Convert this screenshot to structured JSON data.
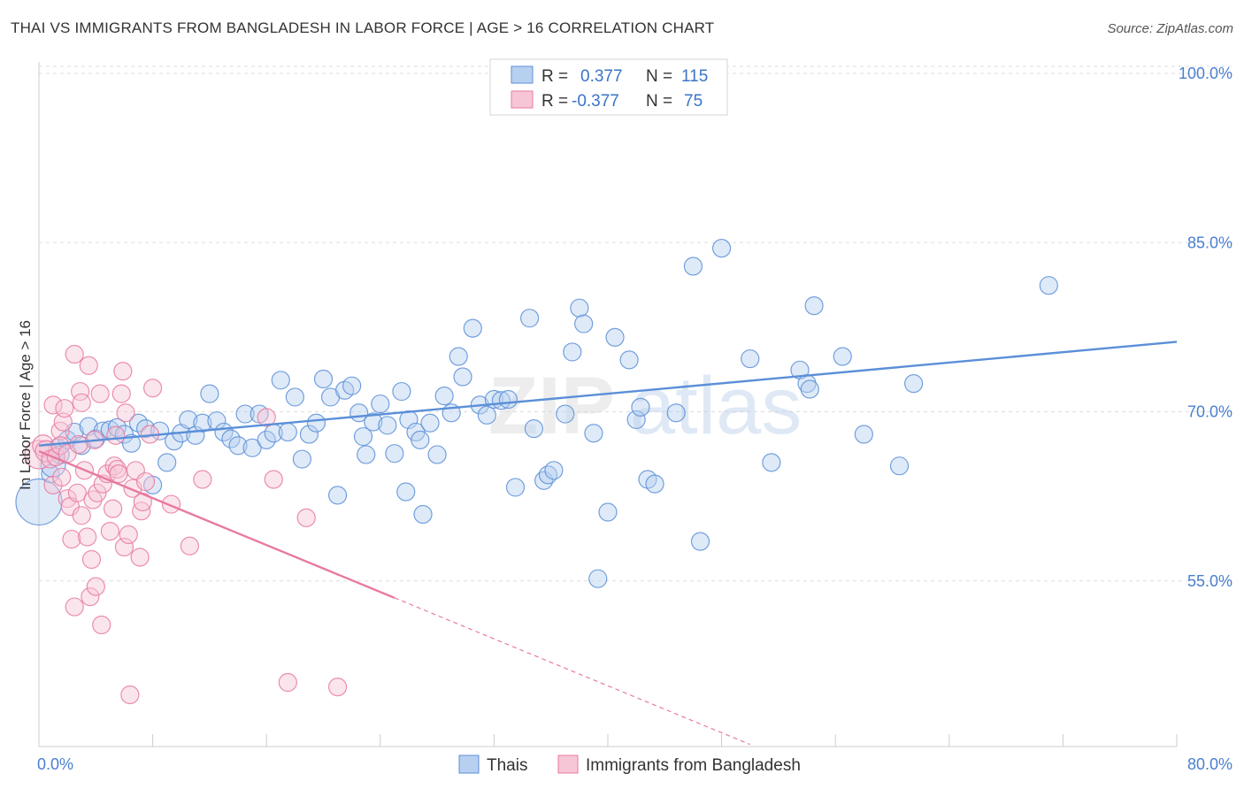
{
  "header": {
    "title": "THAI VS IMMIGRANTS FROM BANGLADESH IN LABOR FORCE | AGE > 16 CORRELATION CHART",
    "source": "Source: ZipAtlas.com"
  },
  "watermark": {
    "zip": "ZIP",
    "atlas": "atlas"
  },
  "legend": {
    "r_label": "R =",
    "n_label": "N =",
    "rows": [
      {
        "r": "0.377",
        "n": "115",
        "color": "#5b8fd8"
      },
      {
        "r": "-0.377",
        "n": "75",
        "color": "#e87aa0"
      }
    ]
  },
  "chart_data": {
    "type": "scatter",
    "title": "THAI VS IMMIGRANTS FROM BANGLADESH IN LABOR FORCE | AGE > 16 CORRELATION CHART",
    "xlabel": "",
    "ylabel": "In Labor Force | Age > 16",
    "xlim": [
      0,
      80
    ],
    "ylim": [
      40,
      102
    ],
    "x_tick_labels": [
      "0.0%",
      "80.0%"
    ],
    "y_ticks": [
      55,
      70,
      85,
      100
    ],
    "y_tick_labels": [
      "55.0%",
      "70.0%",
      "85.0%",
      "100.0%"
    ],
    "grid": true,
    "legend_placement": "top-center",
    "series": [
      {
        "name": "Thais",
        "color": "#5b8fd8",
        "trend": {
          "x": [
            0,
            80
          ],
          "y": [
            67.0,
            76.2
          ],
          "dashed_x": null
        },
        "points": [
          [
            0.0,
            62.0,
            26
          ],
          [
            0.8,
            64.5,
            10
          ],
          [
            1.0,
            65.3,
            14
          ],
          [
            1.3,
            66.8,
            10
          ],
          [
            1.5,
            66.2,
            10
          ],
          [
            2.0,
            67.5,
            10
          ],
          [
            2.5,
            68.2,
            10
          ],
          [
            3.0,
            67.0,
            10
          ],
          [
            3.5,
            68.7,
            10
          ],
          [
            4.0,
            67.6,
            10
          ],
          [
            4.5,
            68.3,
            10
          ],
          [
            5.0,
            68.4,
            10
          ],
          [
            5.5,
            68.6,
            10
          ],
          [
            6.0,
            68.0,
            10
          ],
          [
            6.5,
            67.2,
            10
          ],
          [
            7.0,
            69.0,
            10
          ],
          [
            7.5,
            68.5,
            10
          ],
          [
            8.0,
            63.5,
            10
          ],
          [
            8.5,
            68.3,
            10
          ],
          [
            9.0,
            65.5,
            10
          ],
          [
            9.5,
            67.4,
            10
          ],
          [
            10.0,
            68.1,
            10
          ],
          [
            10.5,
            69.3,
            10
          ],
          [
            11.0,
            67.9,
            10
          ],
          [
            11.5,
            69.0,
            10
          ],
          [
            12.0,
            71.6,
            10
          ],
          [
            12.5,
            69.2,
            10
          ],
          [
            13.0,
            68.2,
            10
          ],
          [
            13.5,
            67.6,
            10
          ],
          [
            14.0,
            67.0,
            10
          ],
          [
            14.5,
            69.8,
            10
          ],
          [
            15.0,
            66.8,
            10
          ],
          [
            15.5,
            69.8,
            10
          ],
          [
            16.0,
            67.5,
            10
          ],
          [
            16.5,
            68.1,
            10
          ],
          [
            17.0,
            72.8,
            10
          ],
          [
            17.5,
            68.2,
            10
          ],
          [
            18.0,
            71.3,
            10
          ],
          [
            18.5,
            65.8,
            10
          ],
          [
            19.0,
            68.0,
            10
          ],
          [
            19.5,
            69.0,
            10
          ],
          [
            20.0,
            72.9,
            10
          ],
          [
            20.5,
            71.3,
            10
          ],
          [
            21.0,
            62.6,
            10
          ],
          [
            21.5,
            71.9,
            10
          ],
          [
            22.0,
            72.3,
            10
          ],
          [
            22.5,
            69.9,
            10
          ],
          [
            22.8,
            67.8,
            10
          ],
          [
            23.0,
            66.2,
            10
          ],
          [
            23.5,
            69.1,
            10
          ],
          [
            24.0,
            70.7,
            10
          ],
          [
            24.5,
            68.8,
            10
          ],
          [
            25.0,
            66.3,
            10
          ],
          [
            25.5,
            71.8,
            10
          ],
          [
            25.8,
            62.9,
            10
          ],
          [
            26.0,
            69.3,
            10
          ],
          [
            26.5,
            68.2,
            10
          ],
          [
            26.8,
            67.5,
            10
          ],
          [
            27.0,
            60.9,
            10
          ],
          [
            27.5,
            69.0,
            10
          ],
          [
            28.0,
            66.2,
            10
          ],
          [
            28.5,
            71.4,
            10
          ],
          [
            29.0,
            69.9,
            10
          ],
          [
            29.5,
            74.9,
            10
          ],
          [
            29.8,
            73.1,
            10
          ],
          [
            30.5,
            77.4,
            10
          ],
          [
            31.0,
            70.6,
            10
          ],
          [
            31.5,
            69.7,
            10
          ],
          [
            32.0,
            71.1,
            10
          ],
          [
            32.5,
            71.0,
            10
          ],
          [
            33.0,
            71.1,
            10
          ],
          [
            33.5,
            63.3,
            10
          ],
          [
            34.5,
            78.3,
            10
          ],
          [
            34.8,
            68.5,
            10
          ],
          [
            35.5,
            63.9,
            10
          ],
          [
            35.8,
            64.4,
            10
          ],
          [
            36.2,
            64.8,
            10
          ],
          [
            37.0,
            69.8,
            10
          ],
          [
            37.5,
            75.3,
            10
          ],
          [
            38.0,
            79.2,
            10
          ],
          [
            38.3,
            77.8,
            10
          ],
          [
            39.0,
            68.1,
            10
          ],
          [
            39.3,
            55.2,
            10
          ],
          [
            40.0,
            61.1,
            10
          ],
          [
            40.5,
            76.6,
            10
          ],
          [
            41.5,
            74.6,
            10
          ],
          [
            42.0,
            69.3,
            10
          ],
          [
            42.3,
            70.4,
            10
          ],
          [
            42.8,
            64.0,
            10
          ],
          [
            43.3,
            63.6,
            10
          ],
          [
            44.8,
            69.9,
            10
          ],
          [
            46.0,
            82.9,
            10
          ],
          [
            46.5,
            58.5,
            10
          ],
          [
            48.0,
            84.5,
            10
          ],
          [
            50.0,
            74.7,
            10
          ],
          [
            51.5,
            65.5,
            10
          ],
          [
            53.5,
            73.7,
            10
          ],
          [
            54.0,
            72.5,
            10
          ],
          [
            54.2,
            72.0,
            10
          ],
          [
            54.5,
            79.4,
            10
          ],
          [
            56.5,
            74.9,
            10
          ],
          [
            58.0,
            68.0,
            10
          ],
          [
            60.5,
            65.2,
            10
          ],
          [
            61.5,
            72.5,
            10
          ],
          [
            71.0,
            81.2,
            10
          ]
        ]
      },
      {
        "name": "Immigrants from Bangladesh",
        "color": "#e87aa0",
        "trend": {
          "x": [
            0,
            25
          ],
          "y": [
            66.5,
            53.5
          ],
          "dashed_x": [
            25,
            50
          ]
        },
        "points": [
          [
            0.0,
            66.2,
            16
          ],
          [
            0.3,
            67.0,
            12
          ],
          [
            0.5,
            66.5,
            12
          ],
          [
            0.8,
            65.8,
            10
          ],
          [
            1.0,
            63.5,
            10
          ],
          [
            1.0,
            70.6,
            10
          ],
          [
            1.2,
            66.0,
            10
          ],
          [
            1.5,
            68.3,
            10
          ],
          [
            1.5,
            67.0,
            10
          ],
          [
            1.6,
            64.2,
            10
          ],
          [
            1.7,
            69.1,
            10
          ],
          [
            1.8,
            70.3,
            10
          ],
          [
            2.0,
            62.3,
            10
          ],
          [
            2.0,
            66.3,
            10
          ],
          [
            2.2,
            61.6,
            10
          ],
          [
            2.3,
            58.7,
            10
          ],
          [
            2.5,
            52.7,
            10
          ],
          [
            2.5,
            75.1,
            10
          ],
          [
            2.7,
            62.8,
            10
          ],
          [
            2.8,
            67.1,
            10
          ],
          [
            2.9,
            71.8,
            10
          ],
          [
            3.0,
            70.8,
            10
          ],
          [
            3.0,
            60.8,
            10
          ],
          [
            3.2,
            64.8,
            10
          ],
          [
            3.4,
            58.9,
            10
          ],
          [
            3.5,
            74.1,
            10
          ],
          [
            3.6,
            53.6,
            10
          ],
          [
            3.7,
            56.9,
            10
          ],
          [
            3.8,
            62.2,
            10
          ],
          [
            3.9,
            67.5,
            10
          ],
          [
            4.0,
            54.5,
            10
          ],
          [
            4.1,
            62.8,
            10
          ],
          [
            4.3,
            71.6,
            10
          ],
          [
            4.4,
            51.1,
            10
          ],
          [
            4.5,
            63.6,
            10
          ],
          [
            4.8,
            64.5,
            10
          ],
          [
            5.0,
            59.4,
            10
          ],
          [
            5.2,
            61.4,
            10
          ],
          [
            5.3,
            65.2,
            10
          ],
          [
            5.4,
            67.9,
            10
          ],
          [
            5.5,
            64.9,
            10
          ],
          [
            5.6,
            64.5,
            10
          ],
          [
            5.8,
            71.6,
            10
          ],
          [
            5.9,
            73.6,
            10
          ],
          [
            6.0,
            58.0,
            10
          ],
          [
            6.1,
            69.9,
            10
          ],
          [
            6.3,
            59.1,
            10
          ],
          [
            6.4,
            44.9,
            10
          ],
          [
            6.6,
            63.2,
            10
          ],
          [
            6.8,
            64.8,
            10
          ],
          [
            7.1,
            57.1,
            10
          ],
          [
            7.2,
            61.2,
            10
          ],
          [
            7.3,
            62.0,
            10
          ],
          [
            7.5,
            63.8,
            10
          ],
          [
            7.8,
            68.0,
            10
          ],
          [
            8.0,
            72.1,
            10
          ],
          [
            9.3,
            61.8,
            10
          ],
          [
            10.6,
            58.1,
            10
          ],
          [
            11.5,
            64.0,
            10
          ],
          [
            16.0,
            69.5,
            10
          ],
          [
            16.5,
            64.0,
            10
          ],
          [
            17.5,
            46.0,
            10
          ],
          [
            18.8,
            60.6,
            10
          ],
          [
            21.0,
            45.6,
            10
          ]
        ]
      }
    ]
  },
  "bottom_legend": [
    {
      "label": "Thais",
      "color": "#5b8fd8"
    },
    {
      "label": "Immigrants from Bangladesh",
      "color": "#e87aa0"
    }
  ]
}
